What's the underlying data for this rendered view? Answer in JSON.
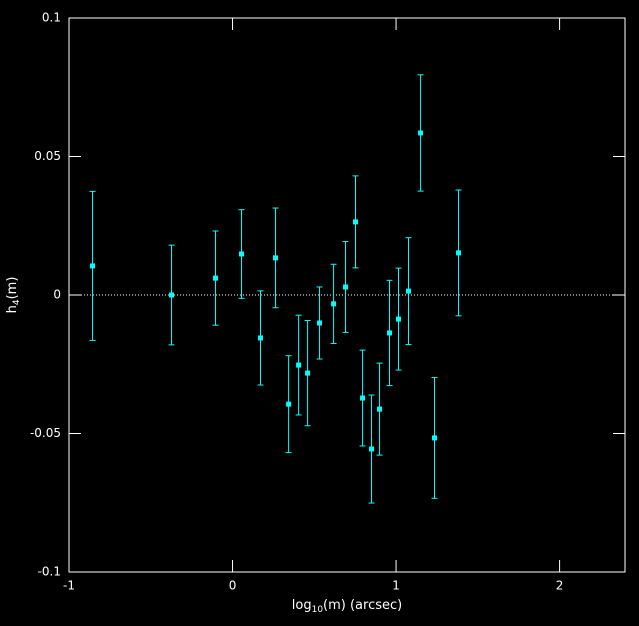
{
  "chart_data": {
    "type": "errorbar-scatter",
    "xlabel": [
      "log",
      "10",
      "(m) (arcsec)"
    ],
    "ylabel": [
      "h",
      "4",
      "(m)"
    ],
    "x": [
      -0.856,
      -0.373,
      -0.104,
      0.055,
      0.171,
      0.263,
      0.343,
      0.404,
      0.459,
      0.532,
      0.618,
      0.691,
      0.752,
      0.795,
      0.85,
      0.899,
      0.96,
      1.015,
      1.076,
      1.15,
      1.235,
      1.382
    ],
    "values": [
      0.0105,
      0.0,
      0.0061,
      0.0148,
      -0.0155,
      0.0134,
      -0.0394,
      -0.0253,
      -0.0282,
      -0.0101,
      -0.0032,
      0.0029,
      0.0264,
      -0.0372,
      -0.0556,
      -0.0412,
      -0.0137,
      -0.0087,
      0.0014,
      0.0585,
      -0.0516,
      0.0152
    ],
    "errors": [
      0.0269,
      0.018,
      0.017,
      0.016,
      0.017,
      0.018,
      0.0175,
      0.018,
      0.019,
      0.013,
      0.0143,
      0.0164,
      0.0166,
      0.0173,
      0.0195,
      0.0166,
      0.019,
      0.0184,
      0.0193,
      0.021,
      0.0218,
      0.0227
    ],
    "color": "#00ffff",
    "xlim": [
      -1,
      2.4
    ],
    "xticks": [
      -1,
      0,
      1,
      2
    ],
    "ylim": [
      -0.1,
      0.1
    ],
    "yticks": [
      -0.1,
      -0.05,
      0,
      0.05,
      0.1
    ],
    "hline": 0
  }
}
